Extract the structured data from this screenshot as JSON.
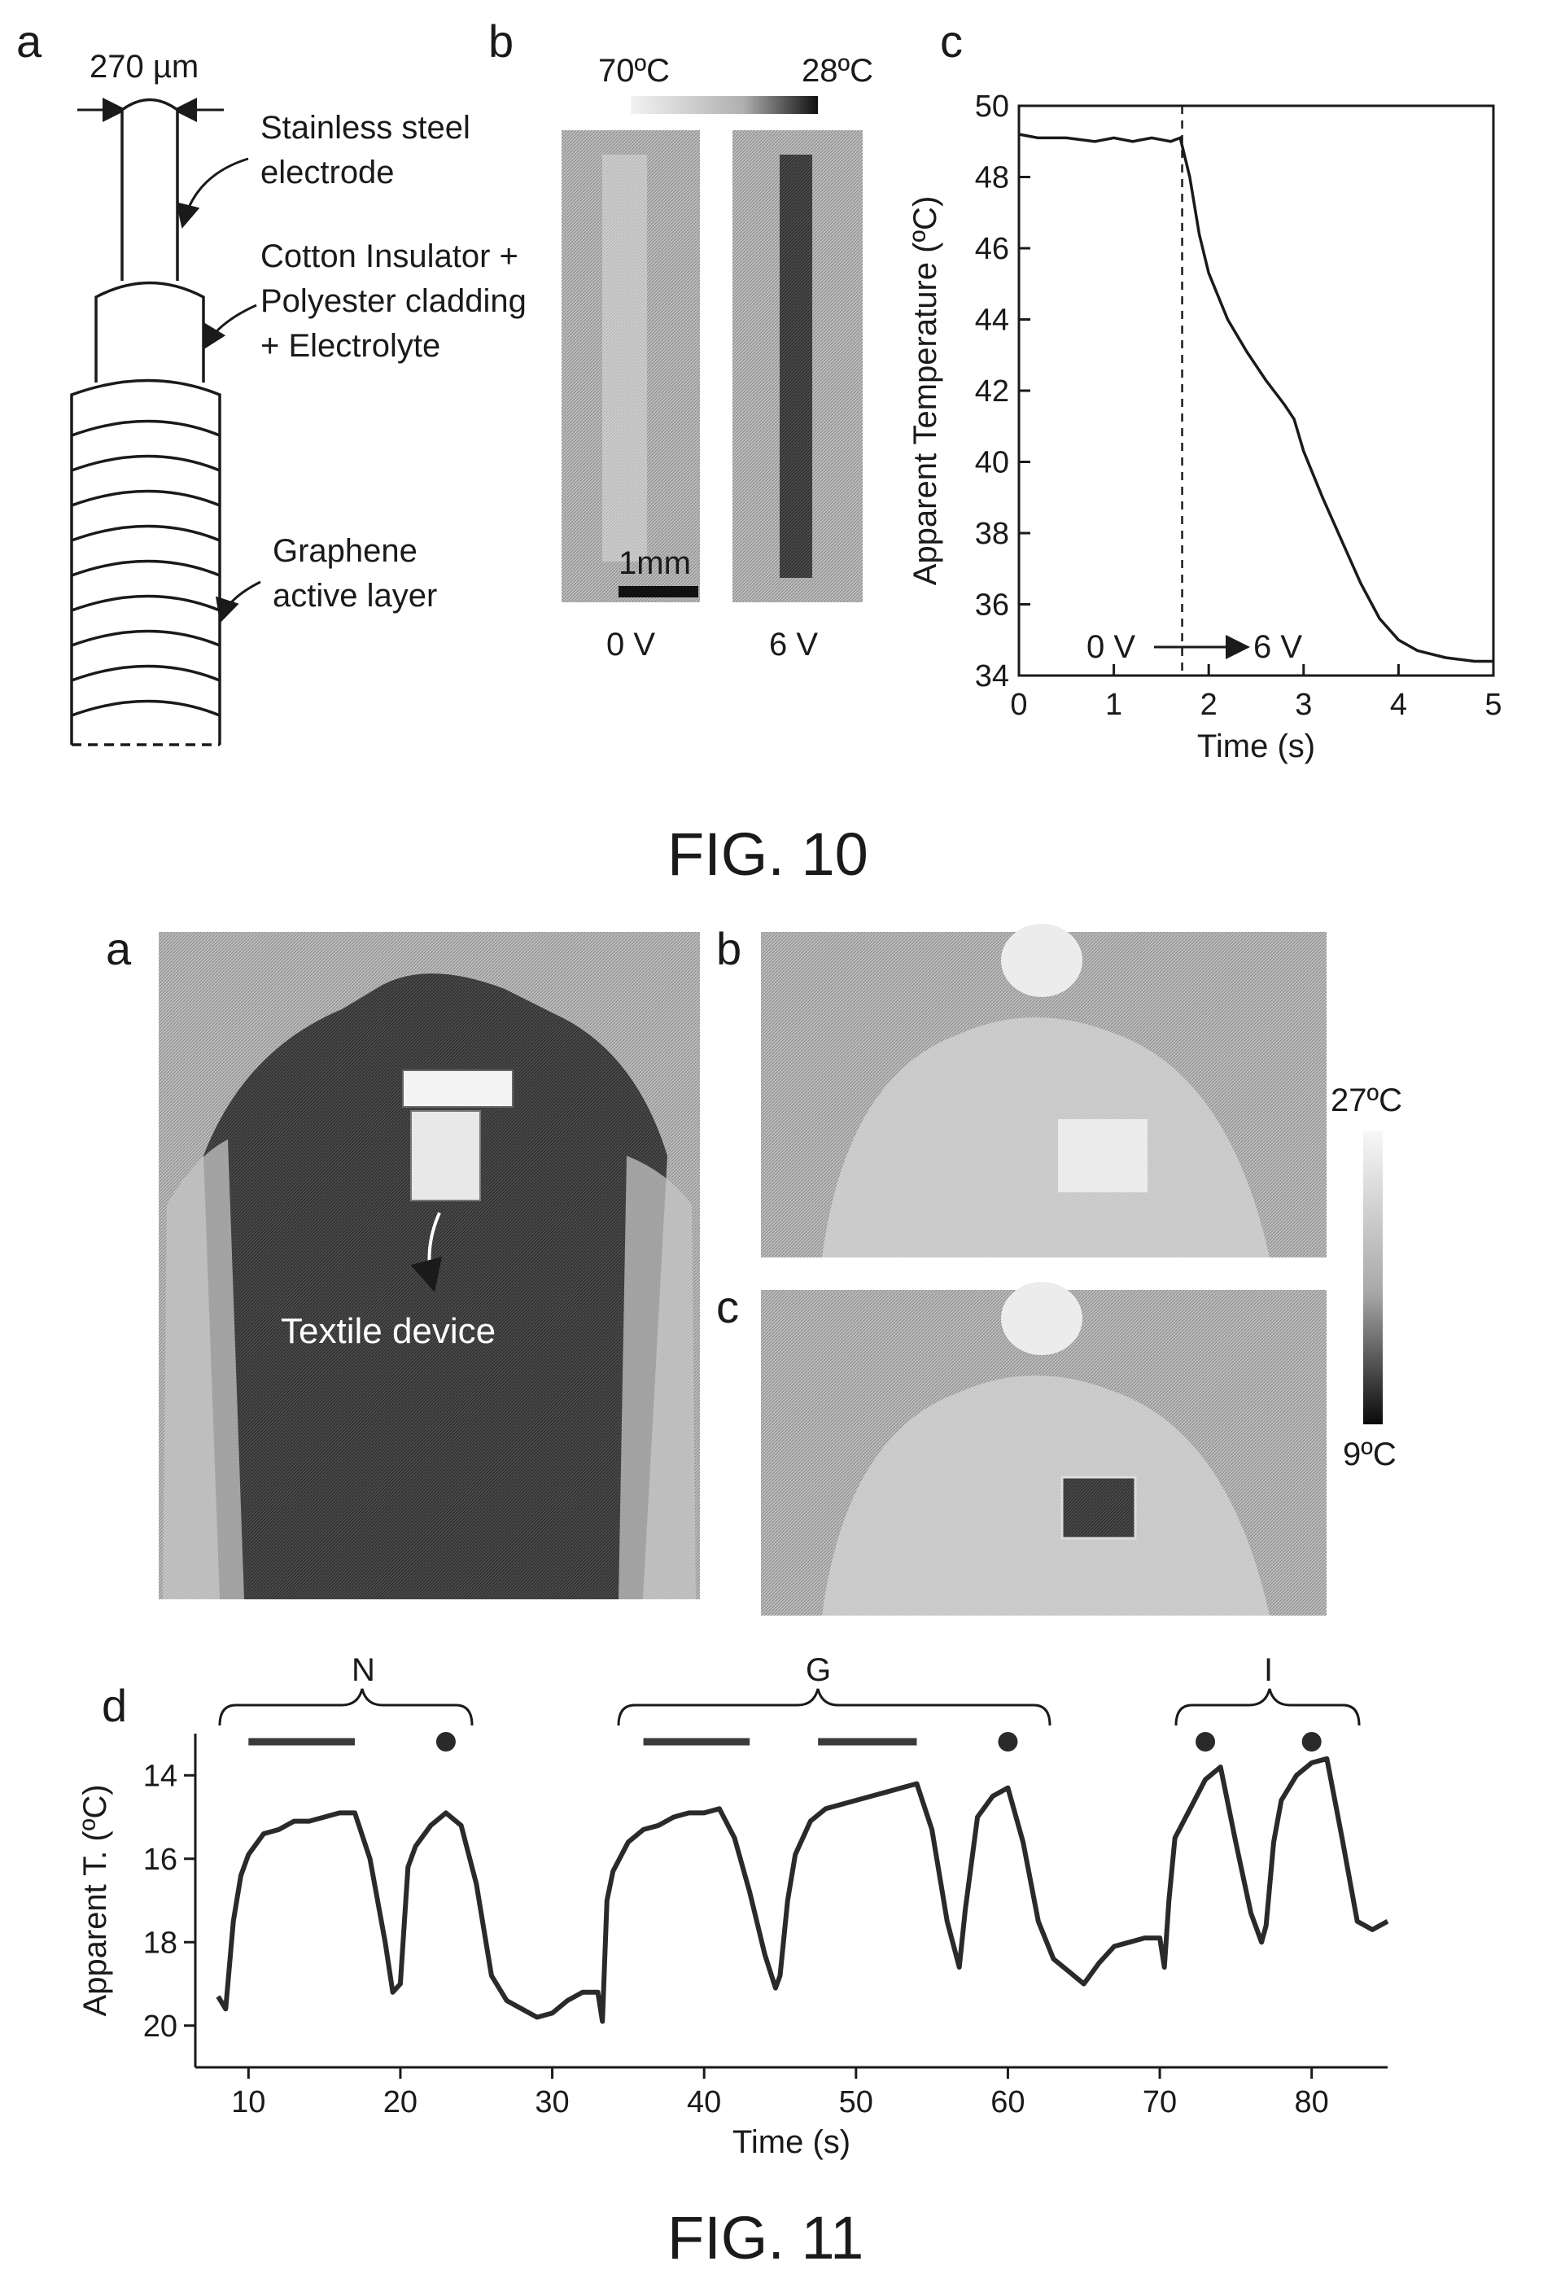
{
  "fig10": {
    "caption": "FIG. 10",
    "panel_a": {
      "label": "a",
      "dimension": "270 µm",
      "electrode_label": [
        "Stainless steel",
        "electrode"
      ],
      "insulator_label": [
        "Cotton Insulator +",
        "Polyester cladding",
        "+ Electrolyte"
      ],
      "graphene_label": [
        "Graphene",
        "active layer"
      ]
    },
    "panel_b": {
      "label": "b",
      "scale_hot": "70ºC",
      "scale_cold": "28ºC",
      "scalebar": "1mm",
      "voltage_left": "0 V",
      "voltage_right": "6 V"
    },
    "panel_c": {
      "label": "c",
      "annotation_left": "0 V",
      "annotation_right": "6 V"
    }
  },
  "fig11": {
    "caption": "FIG. 11",
    "panel_a": {
      "label": "a",
      "device_label": "Textile device"
    },
    "panel_b": {
      "label": "b"
    },
    "panel_c": {
      "label": "c"
    },
    "colorbar": {
      "max": "27ºC",
      "min": "9ºC"
    },
    "panel_d": {
      "label": "d",
      "groups": [
        "N",
        "G",
        "I"
      ]
    }
  },
  "chart_data": [
    {
      "type": "line",
      "title": "",
      "xlabel": "Time (s)",
      "ylabel": "Apparent Temperature (ºC)",
      "xlim": [
        0,
        5
      ],
      "ylim": [
        34,
        50
      ],
      "xticks": [
        0,
        1,
        2,
        3,
        4,
        5
      ],
      "yticks": [
        34,
        36,
        38,
        40,
        42,
        44,
        46,
        48,
        50
      ],
      "vline_x": 1.72,
      "series": [
        {
          "x": [
            0,
            0.2,
            0.5,
            0.8,
            1.0,
            1.2,
            1.4,
            1.6,
            1.7,
            1.8,
            1.9,
            2.0,
            2.2,
            2.4,
            2.6,
            2.8,
            2.9,
            3.0,
            3.2,
            3.4,
            3.6,
            3.8,
            4.0,
            4.2,
            4.5,
            4.8,
            5.0
          ],
          "y": [
            49.2,
            49.1,
            49.1,
            49.0,
            49.1,
            49.0,
            49.1,
            49.0,
            49.1,
            48.0,
            46.4,
            45.3,
            44.0,
            43.1,
            42.3,
            41.6,
            41.2,
            40.3,
            39.0,
            37.8,
            36.6,
            35.6,
            35.0,
            34.7,
            34.5,
            34.4,
            34.4
          ]
        }
      ]
    },
    {
      "type": "line",
      "title": "",
      "xlabel": "Time (s)",
      "ylabel": "Apparent T. (ºC)",
      "xlim": [
        6.5,
        85
      ],
      "ylim": [
        21,
        13
      ],
      "xticks": [
        10,
        20,
        30,
        40,
        50,
        60,
        70,
        80
      ],
      "yticks": [
        14,
        16,
        18,
        20
      ],
      "bars": [
        [
          10,
          17
        ],
        [
          36,
          43
        ],
        [
          47.5,
          54
        ]
      ],
      "dots": [
        23,
        60,
        73,
        80
      ],
      "series": [
        {
          "x": [
            8,
            8.5,
            9,
            9.5,
            10,
            11,
            12,
            13,
            14,
            15,
            16,
            17,
            18,
            19,
            19.5,
            20,
            20.5,
            21,
            22,
            23,
            24,
            25,
            26,
            27,
            28,
            29,
            30,
            31,
            32,
            33,
            33.3,
            33.6,
            34,
            35,
            36,
            37,
            38,
            39,
            40,
            41,
            42,
            43,
            44,
            44.7,
            45,
            45.5,
            46,
            47,
            48,
            49,
            50,
            51,
            52,
            53,
            54,
            55,
            56,
            56.8,
            57.2,
            58,
            59,
            60,
            61,
            62,
            63,
            64,
            65,
            66,
            67,
            68,
            69,
            70,
            70.3,
            70.6,
            71,
            72,
            73,
            74,
            75,
            76,
            76.7,
            77,
            77.5,
            78,
            79,
            80,
            81,
            82,
            83,
            84,
            85
          ],
          "y": [
            19.3,
            19.6,
            17.5,
            16.4,
            15.9,
            15.4,
            15.3,
            15.1,
            15.1,
            15.0,
            14.9,
            14.9,
            16.0,
            18.0,
            19.2,
            19.0,
            16.2,
            15.7,
            15.2,
            14.9,
            15.2,
            16.6,
            18.8,
            19.4,
            19.6,
            19.8,
            19.7,
            19.4,
            19.2,
            19.2,
            19.9,
            17.0,
            16.3,
            15.6,
            15.3,
            15.2,
            15.0,
            14.9,
            14.9,
            14.8,
            15.5,
            16.8,
            18.3,
            19.1,
            18.8,
            17.0,
            15.9,
            15.1,
            14.8,
            14.7,
            14.6,
            14.5,
            14.4,
            14.3,
            14.2,
            15.3,
            17.5,
            18.6,
            17.2,
            15.0,
            14.5,
            14.3,
            15.6,
            17.5,
            18.4,
            18.7,
            19.0,
            18.5,
            18.1,
            18.0,
            17.9,
            17.9,
            18.6,
            17.0,
            15.5,
            14.8,
            14.1,
            13.8,
            15.6,
            17.3,
            18.0,
            17.6,
            15.6,
            14.6,
            14.0,
            13.7,
            13.6,
            15.5,
            17.5,
            17.7,
            17.5
          ]
        }
      ]
    }
  ]
}
